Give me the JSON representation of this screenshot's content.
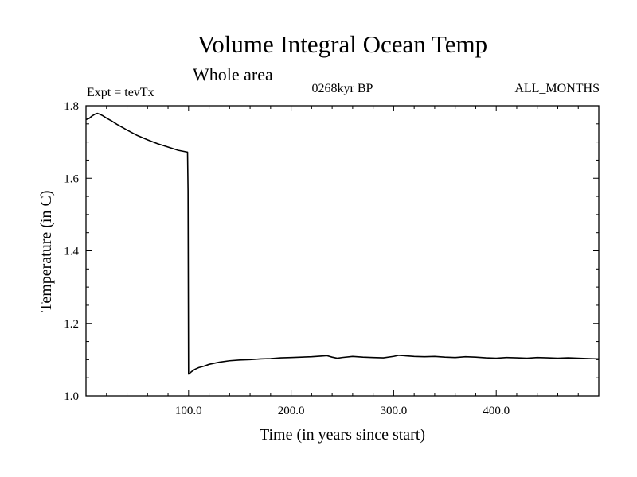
{
  "chart_data": {
    "type": "line",
    "title": "Volume Integral Ocean Temp",
    "subtitle": "Whole area",
    "annotations": {
      "left": "Expt = tevTx",
      "center": "0268kyr BP",
      "right": "ALL_MONTHS"
    },
    "xlabel": "Time (in years since start)",
    "ylabel": "Temperature (in C)",
    "xlim": [
      0,
      500
    ],
    "ylim": [
      1.0,
      1.8
    ],
    "x_ticks": [
      100,
      200,
      300,
      400
    ],
    "x_tick_labels": [
      "100.0",
      "200.0",
      "300.0",
      "400.0"
    ],
    "y_ticks": [
      1.0,
      1.2,
      1.4,
      1.6,
      1.8
    ],
    "y_tick_labels": [
      "1.0",
      "1.2",
      "1.4",
      "1.6",
      "1.8"
    ],
    "grid": false,
    "series": [
      {
        "color": "#000000",
        "x": [
          0,
          3,
          6,
          9,
          11,
          13,
          16,
          20,
          25,
          30,
          40,
          50,
          60,
          70,
          80,
          90,
          99,
          99.5,
          100,
          101,
          103,
          106,
          110,
          115,
          120,
          130,
          140,
          150,
          160,
          170,
          180,
          190,
          200,
          210,
          220,
          230,
          235,
          240,
          245,
          250,
          260,
          270,
          280,
          290,
          300,
          305,
          310,
          320,
          330,
          340,
          350,
          360,
          370,
          380,
          390,
          400,
          410,
          420,
          430,
          440,
          450,
          460,
          470,
          480,
          490,
          500
        ],
        "y": [
          1.762,
          1.765,
          1.772,
          1.777,
          1.779,
          1.777,
          1.773,
          1.766,
          1.758,
          1.749,
          1.733,
          1.718,
          1.706,
          1.695,
          1.686,
          1.677,
          1.672,
          1.565,
          1.06,
          1.062,
          1.067,
          1.073,
          1.078,
          1.082,
          1.087,
          1.093,
          1.097,
          1.099,
          1.1,
          1.102,
          1.103,
          1.105,
          1.106,
          1.107,
          1.108,
          1.11,
          1.111,
          1.107,
          1.104,
          1.106,
          1.109,
          1.107,
          1.106,
          1.105,
          1.109,
          1.112,
          1.111,
          1.109,
          1.108,
          1.109,
          1.107,
          1.106,
          1.108,
          1.107,
          1.105,
          1.104,
          1.106,
          1.105,
          1.104,
          1.106,
          1.105,
          1.104,
          1.105,
          1.104,
          1.103,
          1.102
        ]
      }
    ]
  }
}
